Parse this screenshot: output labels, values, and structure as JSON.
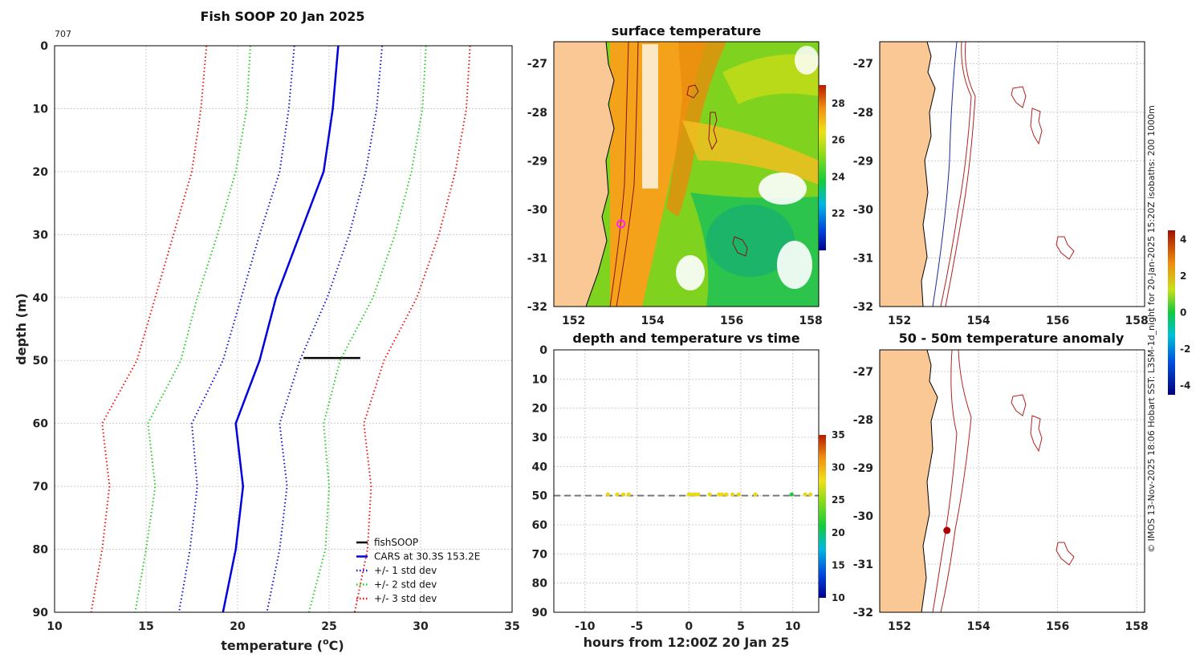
{
  "figure": {
    "corner_number": "707",
    "copyright": "© IMOS 13-Nov-2025 18:06 Hobart SST: L3SM-1d_night for 20-Jan-2025 15:20Z isobaths: 200  1000m"
  },
  "chart_data": [
    {
      "id": "profile",
      "type": "line",
      "title": "Fish SOOP 20 Jan 2025",
      "xlabel_main": "temperature (",
      "xlabel_sup": "o",
      "xlabel_end": "C)",
      "ylabel": "depth (m)",
      "xlim": [
        10,
        35
      ],
      "ylim": [
        90,
        0
      ],
      "xticks": [
        "10",
        "15",
        "20",
        "25",
        "30",
        "35"
      ],
      "yticks": [
        "0",
        "10",
        "20",
        "30",
        "40",
        "50",
        "60",
        "70",
        "80",
        "90"
      ],
      "depth": [
        0,
        10,
        20,
        30,
        40,
        50,
        60,
        70,
        80,
        90
      ],
      "series": [
        {
          "name": "fishSOOP",
          "color": "#000000",
          "style": "solid",
          "temp": [
            23.6,
            26.7
          ],
          "depth": [
            49.6,
            49.6
          ]
        },
        {
          "name": "CARS at 30.3S 153.2E",
          "color": "#0000e0",
          "style": "solid",
          "temp": [
            25.5,
            25.2,
            24.7,
            23.4,
            22.1,
            21.2,
            19.9,
            20.3,
            19.9,
            19.2
          ]
        },
        {
          "name": "+/- 1 std dev",
          "color": "#1010d0",
          "style": "dot",
          "temp": [
            23.1,
            22.8,
            22.3,
            21.2,
            20.2,
            19.2,
            17.5,
            17.8,
            17.4,
            16.8
          ],
          "temp2": [
            27.9,
            27.6,
            27.0,
            26.1,
            24.9,
            23.4,
            22.3,
            22.7,
            22.3,
            21.6
          ]
        },
        {
          "name": "+/- 2 std dev",
          "color": "#22cc22",
          "style": "dot",
          "temp": [
            20.7,
            20.5,
            19.9,
            18.9,
            17.8,
            16.9,
            15.1,
            15.5,
            15.0,
            14.4
          ],
          "temp2": [
            30.3,
            30.1,
            29.5,
            28.6,
            27.4,
            25.6,
            24.7,
            25.0,
            24.8,
            23.9
          ]
        },
        {
          "name": "+/- 3 std dev",
          "color": "#ee1111",
          "style": "dot",
          "temp": [
            18.3,
            18.0,
            17.5,
            16.5,
            15.5,
            14.5,
            12.6,
            13.0,
            12.6,
            12.0
          ],
          "temp2": [
            32.7,
            32.5,
            31.9,
            31.0,
            29.8,
            28.0,
            26.9,
            27.3,
            27.1,
            26.4
          ]
        }
      ]
    },
    {
      "id": "sst_map",
      "type": "heatmap",
      "title": "surface temperature",
      "xticks": [
        "152",
        "154",
        "156",
        "158"
      ],
      "yticks": [
        "-27",
        "-28",
        "-29",
        "-30",
        "-31",
        "-32"
      ],
      "colorbar": {
        "ticks": [
          "22",
          "24",
          "26",
          "28"
        ],
        "range": [
          20,
          29
        ]
      },
      "marker": {
        "lon": 153.2,
        "lat": -30.3,
        "color": "#ff22ff"
      }
    },
    {
      "id": "isobath_map",
      "type": "scatter",
      "title": "",
      "xticks": [
        "152",
        "154",
        "156",
        "158"
      ],
      "yticks": [
        "-27",
        "-28",
        "-29",
        "-30",
        "-31",
        "-32"
      ]
    },
    {
      "id": "time_depth",
      "type": "scatter",
      "title": "depth and temperature vs time",
      "xlabel": "hours from 12:00Z 20 Jan 25",
      "xlim": [
        -13,
        12.5
      ],
      "ylim": [
        90,
        0
      ],
      "xticks": [
        "-10",
        "-5",
        "0",
        "5",
        "10"
      ],
      "yticks": [
        "0",
        "10",
        "20",
        "30",
        "40",
        "50",
        "60",
        "70",
        "80",
        "90"
      ],
      "reference_depth": 50,
      "points_hours": [
        -7.8,
        -6.9,
        -6.3,
        -5.8,
        0.0,
        0.3,
        0.6,
        0.9,
        2.0,
        2.9,
        3.2,
        3.6,
        4.2,
        4.8,
        6.4,
        9.9,
        11.2,
        11.7
      ],
      "points_temp": [
        27,
        27,
        27,
        27,
        27,
        27,
        27,
        27,
        27,
        27,
        27,
        27,
        27,
        27,
        27,
        23,
        27,
        27
      ],
      "colorbar": {
        "ticks": [
          "10",
          "15",
          "20",
          "25",
          "30",
          "35"
        ],
        "range": [
          10,
          35
        ]
      }
    },
    {
      "id": "anomaly_map",
      "type": "scatter",
      "title": "50 - 50m temperature anomaly",
      "xticks": [
        "152",
        "154",
        "156",
        "158"
      ],
      "yticks": [
        "-27",
        "-28",
        "-29",
        "-30",
        "-31",
        "-32"
      ],
      "colorbar": {
        "ticks": [
          "4",
          "2",
          "0",
          "-2",
          "-4"
        ],
        "range": [
          -4.5,
          4.5
        ]
      },
      "marker": {
        "lon": 153.2,
        "lat": -30.3,
        "color": "#aa0000"
      }
    }
  ]
}
